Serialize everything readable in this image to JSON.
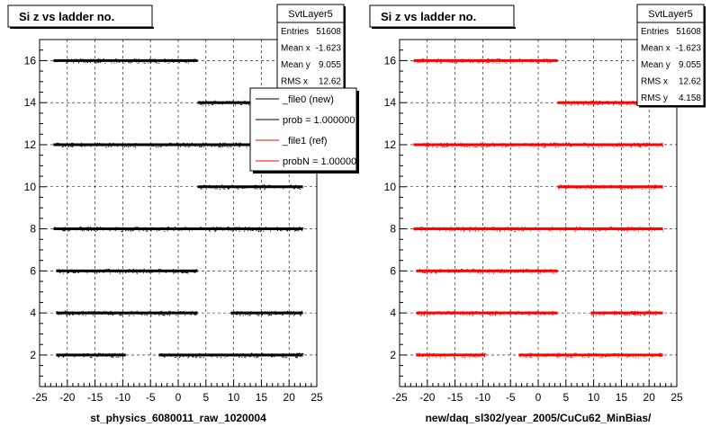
{
  "chart_data": [
    {
      "type": "scatter",
      "title": "Si z vs ladder no.",
      "xlabel": "st_physics_6080011_raw_1020004",
      "ylabel": "",
      "xlim": [
        -25,
        25
      ],
      "ylim": [
        0.5,
        17
      ],
      "x_ticks": [
        -25,
        -20,
        -15,
        -10,
        -5,
        0,
        5,
        10,
        15,
        20,
        25
      ],
      "y_ticks": [
        2,
        4,
        6,
        8,
        10,
        12,
        14,
        16
      ],
      "grid": true,
      "marker_color": "#000000",
      "stats": {
        "name": "SvtLayer5",
        "rows": [
          {
            "label": "Entries",
            "value": "51608"
          },
          {
            "label": "Mean x",
            "value": "-1.623"
          },
          {
            "label": "Mean y",
            "value": "9.055"
          },
          {
            "label": "RMS x",
            "value": "12.62"
          }
        ]
      },
      "legend": {
        "position": "top-right",
        "entries": [
          {
            "label": "_file0 (new)",
            "color": "#000000"
          },
          {
            "label": "prob = 1.000000",
            "color": "#000000"
          },
          {
            "label": "_file1 (ref)",
            "color": "#ff0000"
          },
          {
            "label": "probN = 1.000000",
            "color": "#ff0000"
          }
        ]
      },
      "series": [
        {
          "ladder": 16,
          "x_ranges": [
            [
              -22.5,
              3.5
            ]
          ]
        },
        {
          "ladder": 14,
          "x_ranges": [
            [
              3.5,
              22.5
            ]
          ]
        },
        {
          "ladder": 12,
          "x_ranges": [
            [
              -22.5,
              22.5
            ]
          ]
        },
        {
          "ladder": 10,
          "x_ranges": [
            [
              3.5,
              22.5
            ]
          ]
        },
        {
          "ladder": 8,
          "x_ranges": [
            [
              -22.5,
              22.5
            ]
          ]
        },
        {
          "ladder": 6,
          "x_ranges": [
            [
              -22,
              3.5
            ]
          ]
        },
        {
          "ladder": 4,
          "x_ranges": [
            [
              -22,
              3.5
            ],
            [
              9.5,
              22.5
            ]
          ]
        },
        {
          "ladder": 2,
          "x_ranges": [
            [
              -22,
              -9.5
            ],
            [
              -3.5,
              22.5
            ]
          ]
        }
      ]
    },
    {
      "type": "scatter",
      "title": "Si z vs ladder no.",
      "xlabel": "new/daq_sl302/year_2005/CuCu62_MinBias/",
      "ylabel": "",
      "xlim": [
        -25,
        25
      ],
      "ylim": [
        0.5,
        17
      ],
      "x_ticks": [
        -25,
        -20,
        -15,
        -10,
        -5,
        0,
        5,
        10,
        15,
        20,
        25
      ],
      "y_ticks": [
        2,
        4,
        6,
        8,
        10,
        12,
        14,
        16
      ],
      "grid": true,
      "marker_color": "#ff0000",
      "stats": {
        "name": "SvtLayer5",
        "rows": [
          {
            "label": "Entries",
            "value": "51608"
          },
          {
            "label": "Mean x",
            "value": "-1.623"
          },
          {
            "label": "Mean y",
            "value": "9.055"
          },
          {
            "label": "RMS x",
            "value": "12.62"
          },
          {
            "label": "RMS y",
            "value": "4.158"
          }
        ]
      },
      "series": [
        {
          "ladder": 16,
          "x_ranges": [
            [
              -22.5,
              3.5
            ]
          ]
        },
        {
          "ladder": 14,
          "x_ranges": [
            [
              3.5,
              22.5
            ]
          ]
        },
        {
          "ladder": 12,
          "x_ranges": [
            [
              -22.5,
              22.5
            ]
          ]
        },
        {
          "ladder": 10,
          "x_ranges": [
            [
              3.5,
              22.5
            ]
          ]
        },
        {
          "ladder": 8,
          "x_ranges": [
            [
              -22.5,
              22.5
            ]
          ]
        },
        {
          "ladder": 6,
          "x_ranges": [
            [
              -22,
              3.5
            ]
          ]
        },
        {
          "ladder": 4,
          "x_ranges": [
            [
              -22,
              3.5
            ],
            [
              9.5,
              22.5
            ]
          ]
        },
        {
          "ladder": 2,
          "x_ranges": [
            [
              -22,
              -9.5
            ],
            [
              -3.5,
              22.5
            ]
          ]
        }
      ]
    }
  ]
}
